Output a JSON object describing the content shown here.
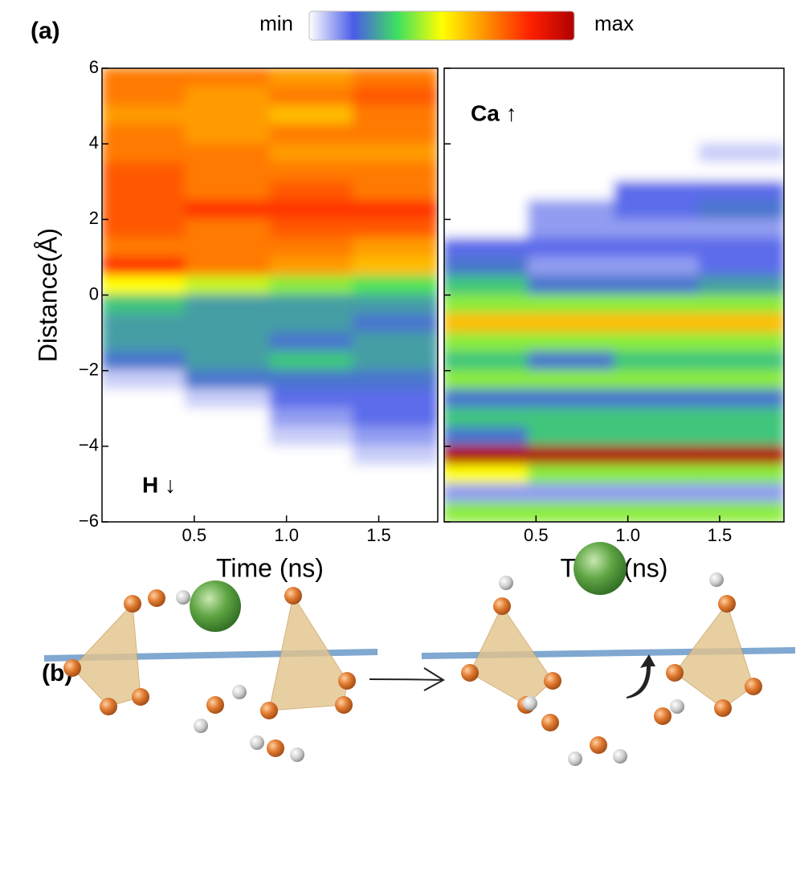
{
  "panel_a_label": "(a)",
  "panel_b_label": "(b)",
  "colorbar": {
    "min_label": "min",
    "max_label": "max",
    "zlim": [
      0,
      10
    ],
    "colors": [
      "#ffffff",
      "#4a5ce8",
      "#3ee060",
      "#ffff00",
      "#ff9000",
      "#ff2000",
      "#b00000"
    ]
  },
  "chart_data": [
    {
      "type": "heatmap",
      "x_label": "Time (ns)",
      "y_label": "Distance(Å)",
      "annotation": "H ↓",
      "xlim": [
        0,
        1.82
      ],
      "ylim": [
        -6,
        6
      ],
      "xticks": [
        0.5,
        {
          "value": 1.0,
          "label": "1.0"
        },
        1.5
      ],
      "yticks": [
        {
          "value": -6,
          "label": "−6"
        },
        {
          "value": -4,
          "label": "−4"
        },
        {
          "value": -2,
          "label": "−2"
        },
        0,
        2,
        4,
        6
      ],
      "x": [
        0.23,
        0.68,
        1.14,
        1.59
      ],
      "y": [
        5.75,
        5.25,
        4.75,
        4.25,
        3.75,
        3.25,
        2.75,
        2.25,
        1.75,
        1.25,
        0.75,
        0.25,
        -0.25,
        -0.75,
        -1.25,
        -1.75,
        -2.25,
        -2.75,
        -3.25,
        -3.75,
        -4.25,
        -4.75,
        -5.25,
        -5.75
      ],
      "z": [
        [
          7,
          7,
          6.5,
          7
        ],
        [
          7,
          6.5,
          7,
          7.5
        ],
        [
          6.5,
          6.5,
          6,
          7
        ],
        [
          7,
          6.5,
          7,
          7
        ],
        [
          7,
          7,
          6.5,
          6.5
        ],
        [
          7.5,
          7,
          7,
          7
        ],
        [
          7.5,
          7,
          7.5,
          7
        ],
        [
          7.5,
          8,
          8,
          8
        ],
        [
          7.5,
          7,
          7.5,
          7.5
        ],
        [
          7,
          7,
          7,
          6.5
        ],
        [
          8,
          7,
          6.5,
          6
        ],
        [
          5,
          4.5,
          4,
          3.5
        ],
        [
          3,
          2.5,
          2.5,
          2.5
        ],
        [
          2.5,
          2.5,
          2.5,
          2
        ],
        [
          2.5,
          2.5,
          2,
          2.5
        ],
        [
          2,
          2.5,
          3,
          2.5
        ],
        [
          0.5,
          2,
          2,
          2
        ],
        [
          0,
          0.5,
          1.5,
          1.5
        ],
        [
          0,
          0,
          1,
          1.5
        ],
        [
          0,
          0,
          0.5,
          1
        ],
        [
          0,
          0,
          0,
          0.5
        ],
        [
          0,
          0,
          0,
          0
        ],
        [
          0,
          0,
          0,
          0
        ],
        [
          0,
          0,
          0,
          0
        ]
      ]
    },
    {
      "type": "heatmap",
      "x_label": "Time (ns)",
      "annotation": "Ca ↑",
      "xlim": [
        0,
        1.85
      ],
      "ylim": [
        -6,
        6
      ],
      "xticks": [
        0.5,
        {
          "value": 1.0,
          "label": "1.0"
        },
        1.5
      ],
      "yticks": [
        -6,
        -4,
        -2,
        0,
        2,
        4,
        6
      ],
      "x": [
        0.23,
        0.69,
        1.16,
        1.62
      ],
      "y": [
        5.75,
        5.25,
        4.75,
        4.25,
        3.75,
        3.25,
        2.75,
        2.25,
        1.75,
        1.25,
        0.75,
        0.25,
        -0.25,
        -0.75,
        -1.25,
        -1.75,
        -2.25,
        -2.75,
        -3.25,
        -3.75,
        -4.25,
        -4.75,
        -5.25,
        -5.75
      ],
      "z": [
        [
          0,
          0,
          0,
          0
        ],
        [
          0,
          0,
          0,
          0
        ],
        [
          0,
          0,
          0,
          0
        ],
        [
          0,
          0,
          0,
          0
        ],
        [
          0,
          0,
          0,
          0.5
        ],
        [
          0,
          0,
          0,
          0
        ],
        [
          0,
          0,
          1.5,
          1.5
        ],
        [
          0,
          1,
          1.5,
          2
        ],
        [
          0,
          1,
          1,
          1
        ],
        [
          1.5,
          1.5,
          1.5,
          1.5
        ],
        [
          2,
          1,
          1,
          1.5
        ],
        [
          3,
          2,
          2,
          2.5
        ],
        [
          4,
          4,
          4,
          4
        ],
        [
          6,
          6,
          6,
          6
        ],
        [
          4,
          4,
          4,
          4
        ],
        [
          3,
          2,
          3,
          3
        ],
        [
          4,
          4,
          4,
          4
        ],
        [
          2,
          2,
          2,
          2
        ],
        [
          3,
          3,
          3,
          3
        ],
        [
          2,
          3,
          3,
          3
        ],
        [
          10,
          10,
          10,
          10
        ],
        [
          5,
          4,
          4,
          4
        ],
        [
          1,
          1,
          1,
          1
        ],
        [
          4,
          4,
          4,
          4
        ]
      ]
    }
  ]
}
